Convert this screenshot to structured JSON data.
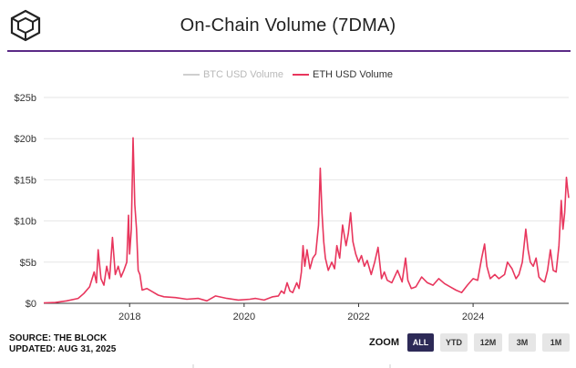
{
  "header": {
    "title": "On-Chain Volume (7DMA)",
    "logo_icon": "the-block-cube-logo-icon"
  },
  "legend": [
    {
      "label": "BTC USD Volume",
      "color": "#cccccc",
      "enabled": false
    },
    {
      "label": "ETH USD Volume",
      "color": "#e8365d",
      "enabled": true
    }
  ],
  "footer": {
    "source": "SOURCE: THE BLOCK",
    "updated": "UPDATED: AUG 31, 2025"
  },
  "zoom": {
    "label": "ZOOM",
    "buttons": [
      {
        "label": "ALL",
        "active": true
      },
      {
        "label": "YTD",
        "active": false
      },
      {
        "label": "12M",
        "active": false
      },
      {
        "label": "3M",
        "active": false
      },
      {
        "label": "1M",
        "active": false
      }
    ]
  },
  "chart_data": {
    "type": "line",
    "title": "On-Chain Volume (7DMA)",
    "xlabel": "",
    "ylabel": "",
    "x_ticks": [
      "2018",
      "2020",
      "2022",
      "2024"
    ],
    "y_ticks": [
      "$0",
      "$5b",
      "$10b",
      "$15b",
      "$20b",
      "$25b"
    ],
    "ylim": [
      0,
      25
    ],
    "xlim": [
      2016.5,
      2025.67
    ],
    "grid": true,
    "legend_position": "top-center",
    "series": [
      {
        "name": "ETH USD Volume",
        "color": "#e8365d",
        "unit": "billion USD",
        "points": [
          [
            2016.5,
            0.05
          ],
          [
            2016.7,
            0.1
          ],
          [
            2016.9,
            0.3
          ],
          [
            2017.1,
            0.6
          ],
          [
            2017.2,
            1.2
          ],
          [
            2017.3,
            2.0
          ],
          [
            2017.38,
            3.8
          ],
          [
            2017.42,
            2.5
          ],
          [
            2017.45,
            6.5
          ],
          [
            2017.5,
            3.0
          ],
          [
            2017.55,
            2.2
          ],
          [
            2017.6,
            4.5
          ],
          [
            2017.65,
            3.0
          ],
          [
            2017.7,
            8.0
          ],
          [
            2017.75,
            3.5
          ],
          [
            2017.8,
            4.5
          ],
          [
            2017.85,
            3.2
          ],
          [
            2017.9,
            4.0
          ],
          [
            2017.95,
            5.0
          ],
          [
            2017.98,
            10.7
          ],
          [
            2018.0,
            6.0
          ],
          [
            2018.03,
            9.0
          ],
          [
            2018.06,
            20.1
          ],
          [
            2018.09,
            12.0
          ],
          [
            2018.12,
            9.0
          ],
          [
            2018.15,
            4.0
          ],
          [
            2018.18,
            3.5
          ],
          [
            2018.22,
            1.6
          ],
          [
            2018.3,
            1.8
          ],
          [
            2018.4,
            1.4
          ],
          [
            2018.5,
            1.0
          ],
          [
            2018.6,
            0.8
          ],
          [
            2018.8,
            0.7
          ],
          [
            2019.0,
            0.5
          ],
          [
            2019.2,
            0.6
          ],
          [
            2019.35,
            0.3
          ],
          [
            2019.5,
            0.9
          ],
          [
            2019.7,
            0.6
          ],
          [
            2019.9,
            0.4
          ],
          [
            2020.1,
            0.5
          ],
          [
            2020.2,
            0.6
          ],
          [
            2020.35,
            0.4
          ],
          [
            2020.5,
            0.8
          ],
          [
            2020.6,
            0.9
          ],
          [
            2020.65,
            1.5
          ],
          [
            2020.7,
            1.2
          ],
          [
            2020.75,
            2.5
          ],
          [
            2020.8,
            1.5
          ],
          [
            2020.85,
            1.3
          ],
          [
            2020.92,
            2.5
          ],
          [
            2020.96,
            1.8
          ],
          [
            2021.0,
            3.8
          ],
          [
            2021.03,
            7.0
          ],
          [
            2021.06,
            4.5
          ],
          [
            2021.1,
            6.5
          ],
          [
            2021.15,
            4.2
          ],
          [
            2021.2,
            5.5
          ],
          [
            2021.25,
            6.0
          ],
          [
            2021.3,
            9.5
          ],
          [
            2021.33,
            16.4
          ],
          [
            2021.36,
            11.0
          ],
          [
            2021.39,
            7.5
          ],
          [
            2021.42,
            5.5
          ],
          [
            2021.47,
            4.0
          ],
          [
            2021.53,
            5.0
          ],
          [
            2021.58,
            4.2
          ],
          [
            2021.62,
            7.0
          ],
          [
            2021.67,
            5.5
          ],
          [
            2021.72,
            9.5
          ],
          [
            2021.78,
            7.0
          ],
          [
            2021.82,
            8.5
          ],
          [
            2021.86,
            11.0
          ],
          [
            2021.9,
            7.5
          ],
          [
            2021.95,
            6.0
          ],
          [
            2022.0,
            5.0
          ],
          [
            2022.05,
            5.8
          ],
          [
            2022.1,
            4.5
          ],
          [
            2022.15,
            5.2
          ],
          [
            2022.22,
            3.5
          ],
          [
            2022.28,
            5.0
          ],
          [
            2022.34,
            6.8
          ],
          [
            2022.4,
            3.0
          ],
          [
            2022.45,
            3.8
          ],
          [
            2022.5,
            2.8
          ],
          [
            2022.58,
            2.5
          ],
          [
            2022.68,
            4.0
          ],
          [
            2022.76,
            2.6
          ],
          [
            2022.82,
            5.5
          ],
          [
            2022.86,
            2.8
          ],
          [
            2022.92,
            1.8
          ],
          [
            2023.0,
            2.0
          ],
          [
            2023.1,
            3.2
          ],
          [
            2023.2,
            2.5
          ],
          [
            2023.3,
            2.2
          ],
          [
            2023.4,
            3.0
          ],
          [
            2023.5,
            2.4
          ],
          [
            2023.6,
            2.0
          ],
          [
            2023.7,
            1.6
          ],
          [
            2023.8,
            1.3
          ],
          [
            2023.9,
            2.2
          ],
          [
            2024.0,
            3.0
          ],
          [
            2024.08,
            2.8
          ],
          [
            2024.15,
            5.5
          ],
          [
            2024.2,
            7.2
          ],
          [
            2024.24,
            4.5
          ],
          [
            2024.3,
            3.0
          ],
          [
            2024.38,
            3.5
          ],
          [
            2024.45,
            3.0
          ],
          [
            2024.55,
            3.5
          ],
          [
            2024.6,
            5.0
          ],
          [
            2024.68,
            4.2
          ],
          [
            2024.75,
            3.0
          ],
          [
            2024.8,
            3.5
          ],
          [
            2024.86,
            5.0
          ],
          [
            2024.92,
            9.0
          ],
          [
            2024.96,
            6.5
          ],
          [
            2025.0,
            5.0
          ],
          [
            2025.05,
            4.5
          ],
          [
            2025.1,
            5.5
          ],
          [
            2025.15,
            3.2
          ],
          [
            2025.2,
            2.8
          ],
          [
            2025.25,
            2.6
          ],
          [
            2025.3,
            4.0
          ],
          [
            2025.35,
            6.5
          ],
          [
            2025.4,
            4.0
          ],
          [
            2025.45,
            3.8
          ],
          [
            2025.5,
            7.0
          ],
          [
            2025.54,
            12.5
          ],
          [
            2025.57,
            9.0
          ],
          [
            2025.6,
            11.0
          ],
          [
            2025.63,
            15.3
          ],
          [
            2025.65,
            14.0
          ],
          [
            2025.67,
            12.8
          ]
        ]
      }
    ]
  }
}
